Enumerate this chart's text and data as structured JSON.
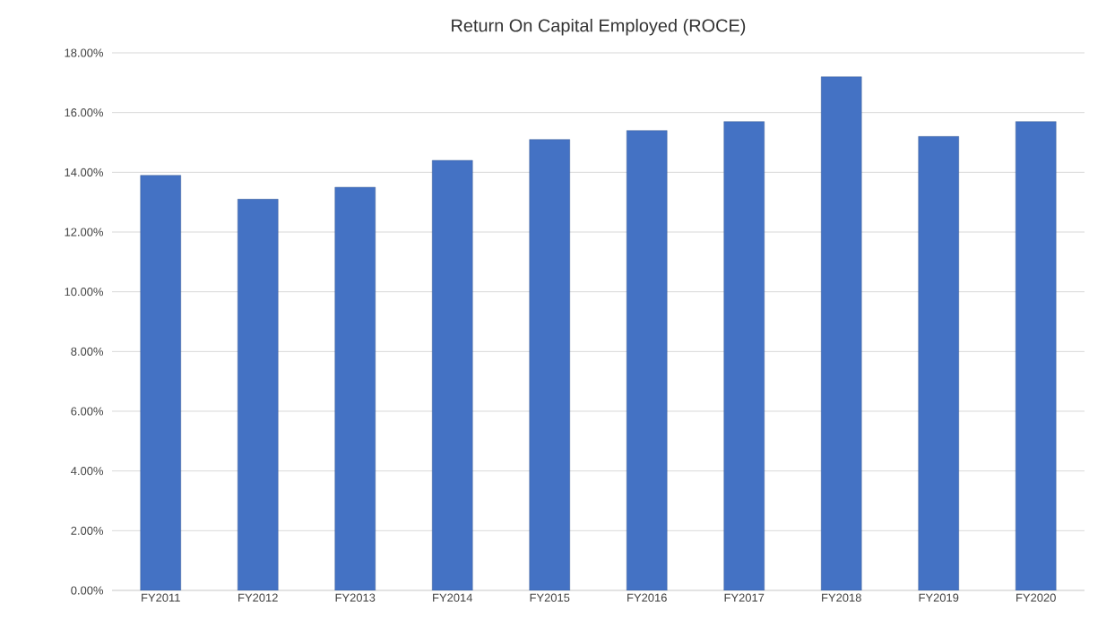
{
  "chart_data": {
    "type": "bar",
    "title": "Return On Capital Employed (ROCE)",
    "categories": [
      "FY2011",
      "FY2012",
      "FY2013",
      "FY2014",
      "FY2015",
      "FY2016",
      "FY2017",
      "FY2018",
      "FY2019",
      "FY2020"
    ],
    "values": [
      13.9,
      13.1,
      13.5,
      14.4,
      15.1,
      15.4,
      15.7,
      17.2,
      15.2,
      15.7
    ],
    "color": "#4472c4",
    "ylim": [
      0,
      18
    ],
    "yticks": [
      {
        "value": 0,
        "label": "0.00%"
      },
      {
        "value": 2,
        "label": "2.00%"
      },
      {
        "value": 4,
        "label": "4.00%"
      },
      {
        "value": 6,
        "label": "6.00%"
      },
      {
        "value": 8,
        "label": "8.00%"
      },
      {
        "value": 10,
        "label": "10.00%"
      },
      {
        "value": 12,
        "label": "12.00%"
      },
      {
        "value": 14,
        "label": "14.00%"
      },
      {
        "value": 16,
        "label": "16.00%"
      },
      {
        "value": 18,
        "label": "18.00%"
      }
    ],
    "grid": "y"
  }
}
